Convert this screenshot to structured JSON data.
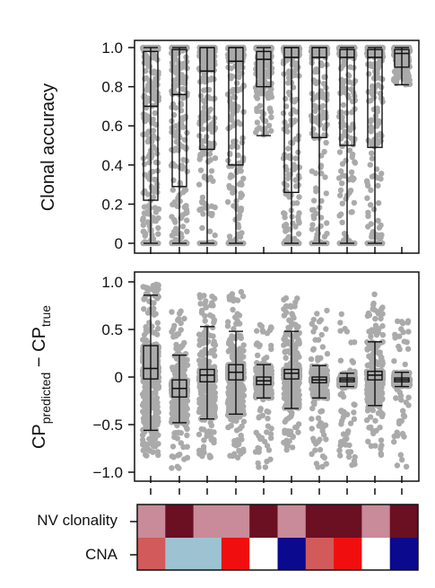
{
  "chart_data": [
    {
      "type": "box",
      "panel": "top",
      "ylabel": "Clonal accuracy",
      "ylim": [
        0,
        1
      ],
      "yticks": [
        "0",
        "0.2",
        "0.4",
        "0.6",
        "0.8",
        "1.0"
      ],
      "ytick_values": [
        0,
        0.2,
        0.4,
        0.6,
        0.8,
        1.0
      ],
      "point_color": "#aaaaaa",
      "boxes": [
        {
          "whisker_low": 0,
          "q1": 0.22,
          "median": 0.7,
          "q3": 0.98,
          "whisker_high": 1.0
        },
        {
          "whisker_low": 0,
          "q1": 0.29,
          "median": 0.76,
          "q3": 0.99,
          "whisker_high": 1.0
        },
        {
          "whisker_low": 0,
          "q1": 0.48,
          "median": 0.88,
          "q3": 1.0,
          "whisker_high": 1.0
        },
        {
          "whisker_low": 0,
          "q1": 0.4,
          "median": 0.93,
          "q3": 1.0,
          "whisker_high": 1.0
        },
        {
          "whisker_low": 0.55,
          "q1": 0.8,
          "median": 0.94,
          "q3": 0.98,
          "whisker_high": 1.0
        },
        {
          "whisker_low": 0,
          "q1": 0.26,
          "median": 0.95,
          "q3": 1.0,
          "whisker_high": 1.0
        },
        {
          "whisker_low": 0,
          "q1": 0.54,
          "median": 0.95,
          "q3": 1.0,
          "whisker_high": 1.0
        },
        {
          "whisker_low": 0,
          "q1": 0.5,
          "median": 0.95,
          "q3": 0.99,
          "whisker_high": 1.0
        },
        {
          "whisker_low": 0,
          "q1": 0.49,
          "median": 0.95,
          "q3": 0.99,
          "whisker_high": 1.0
        },
        {
          "whisker_low": 0.81,
          "q1": 0.9,
          "median": 0.97,
          "q3": 0.99,
          "whisker_high": 1.0
        }
      ]
    },
    {
      "type": "box",
      "panel": "middle",
      "ylabel_main": "CP",
      "ylabel_sub1": "predicted",
      "ylabel_mid": " − CP",
      "ylabel_sub2": "true",
      "ylim": [
        -1,
        1
      ],
      "yticks": [
        "−1.0",
        "−0.5",
        "0",
        "0.5",
        "1.0"
      ],
      "ytick_values": [
        -1.0,
        -0.5,
        0,
        0.5,
        1.0
      ],
      "point_color": "#aaaaaa",
      "boxes": [
        {
          "whisker_low": -0.56,
          "q1": -0.02,
          "median": 0.09,
          "q3": 0.33,
          "whisker_high": 0.86,
          "pmin": -0.83,
          "pmax": 1.0
        },
        {
          "whisker_low": -0.48,
          "q1": -0.21,
          "median": -0.12,
          "q3": -0.03,
          "whisker_high": 0.23,
          "pmin": -0.97,
          "pmax": 0.7
        },
        {
          "whisker_low": -0.44,
          "q1": -0.05,
          "median": 0.02,
          "q3": 0.08,
          "whisker_high": 0.53,
          "pmin": -0.85,
          "pmax": 0.9
        },
        {
          "whisker_low": -0.39,
          "q1": -0.03,
          "median": 0.05,
          "q3": 0.13,
          "whisker_high": 0.48,
          "pmin": -0.85,
          "pmax": 0.9
        },
        {
          "whisker_low": -0.22,
          "q1": -0.08,
          "median": -0.04,
          "q3": 0.0,
          "whisker_high": 0.13,
          "pmin": -0.97,
          "pmax": 0.57
        },
        {
          "whisker_low": -0.33,
          "q1": -0.02,
          "median": 0.04,
          "q3": 0.08,
          "whisker_high": 0.48,
          "pmin": -0.78,
          "pmax": 0.85
        },
        {
          "whisker_low": -0.22,
          "q1": -0.06,
          "median": -0.03,
          "q3": 0.0,
          "whisker_high": 0.12,
          "pmin": -0.95,
          "pmax": 0.7
        },
        {
          "whisker_low": -0.1,
          "q1": -0.05,
          "median": -0.03,
          "q3": -0.01,
          "whisker_high": 0.04,
          "pmin": -0.95,
          "pmax": 0.67
        },
        {
          "whisker_low": -0.3,
          "q1": -0.03,
          "median": 0.02,
          "q3": 0.06,
          "whisker_high": 0.37,
          "pmin": -0.85,
          "pmax": 0.87
        },
        {
          "whisker_low": -0.1,
          "q1": -0.05,
          "median": -0.03,
          "q3": -0.01,
          "whisker_high": 0.05,
          "pmin": -0.97,
          "pmax": 0.67
        }
      ]
    },
    {
      "type": "heatmap",
      "panel": "bottom",
      "rows": [
        {
          "label": "NV clonality",
          "colors": [
            "#c98a9a",
            "#6b0f22",
            "#c98a9a",
            "#c98a9a",
            "#6b0f22",
            "#c98a9a",
            "#6b0f22",
            "#6b0f22",
            "#c98a9a",
            "#6b0f22"
          ]
        },
        {
          "label": "CNA",
          "colors": [
            "#d25a5a",
            "#9dc3d2",
            "#9dc3d2",
            "#f10e0e",
            "#ffffff",
            "#0b0a8e",
            "#d25a5a",
            "#f10e0e",
            "#ffffff",
            "#0b0a8e"
          ]
        }
      ]
    }
  ]
}
